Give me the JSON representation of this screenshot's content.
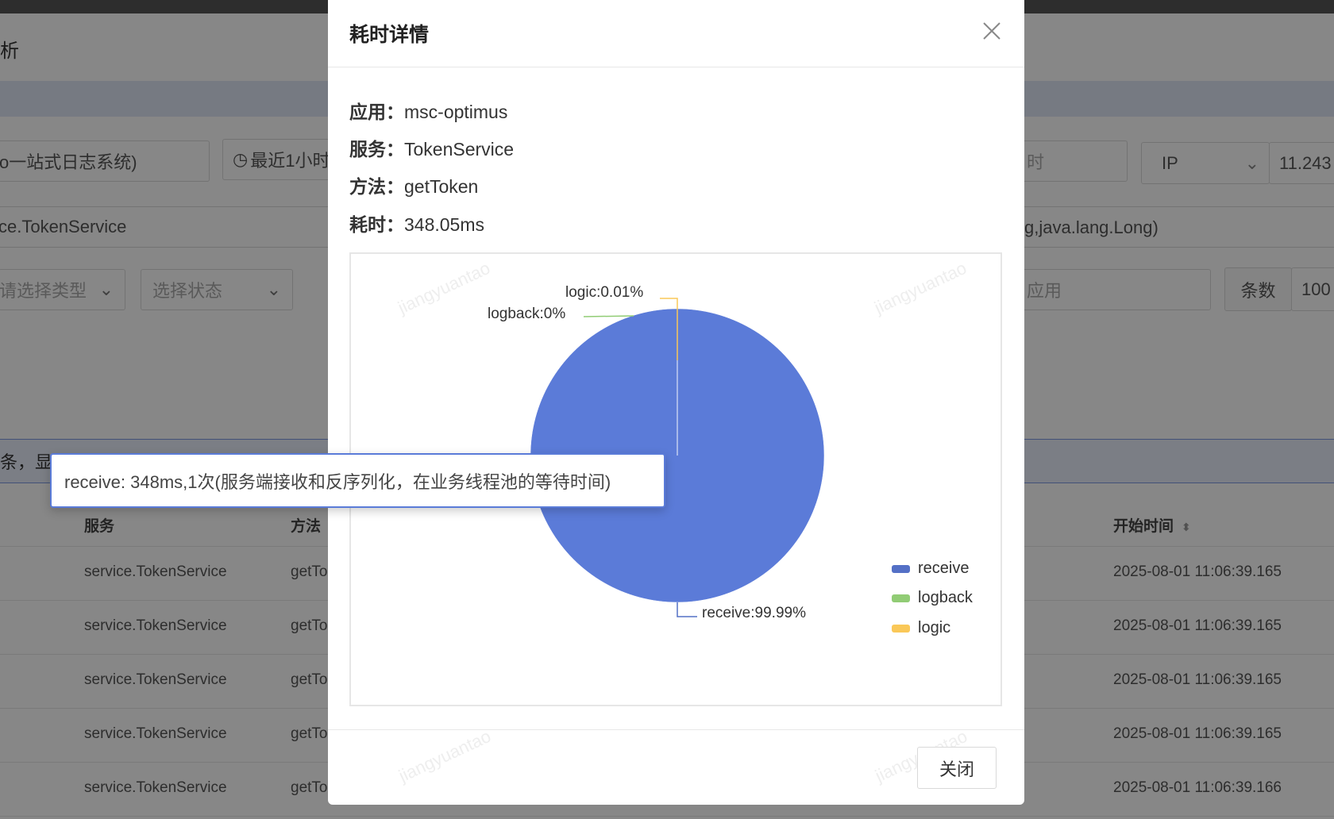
{
  "background": {
    "page_title_fragment": "析",
    "app_select": "o一站式日志系统)",
    "time_range": "最近1小时",
    "time_icon": "clock-icon",
    "end_time_placeholder": "时",
    "ip_select": "IP",
    "ip_value": "11.243",
    "service_field": "ce.TokenService",
    "method_field": "g,java.lang.Long)",
    "type_select_placeholder": "请选择类型",
    "status_select_placeholder": "选择状态",
    "app_placeholder": "应用",
    "count_label": "条数",
    "count_value": "100",
    "info_text": "条，显",
    "table": {
      "headers": {
        "service": "服务",
        "method": "方法",
        "start_time": "开始时间"
      },
      "rows": [
        {
          "service": "service.TokenService",
          "method": "getTo",
          "start_time": "2025-08-01 11:06:39.165"
        },
        {
          "service": "service.TokenService",
          "method": "getTo",
          "start_time": "2025-08-01 11:06:39.165"
        },
        {
          "service": "service.TokenService",
          "method": "getTo",
          "start_time": "2025-08-01 11:06:39.165"
        },
        {
          "service": "service.TokenService",
          "method": "getTo",
          "start_time": "2025-08-01 11:06:39.165"
        },
        {
          "service": "service.TokenService",
          "method": "getTo",
          "start_time": "2025-08-01 11:06:39.166"
        }
      ]
    }
  },
  "modal": {
    "title": "耗时详情",
    "fields": [
      {
        "label": "应用：",
        "value": "msc-optimus"
      },
      {
        "label": "服务：",
        "value": "TokenService"
      },
      {
        "label": "方法：",
        "value": "getToken"
      },
      {
        "label": "耗时：",
        "value": "348.05ms"
      }
    ],
    "watermark": "jiangyuantao",
    "close_button": "关闭",
    "tooltip": "receive: 348ms,1次(服务端接收和反序列化，在业务线程池的等待时间)"
  },
  "chart_data": {
    "type": "pie",
    "slices": [
      {
        "name": "receive",
        "percent": 99.99,
        "label": "receive:99.99%",
        "color": "#5b7bd8"
      },
      {
        "name": "logback",
        "percent": 0,
        "label": "logback:0%",
        "color": "#91cc75"
      },
      {
        "name": "logic",
        "percent": 0.01,
        "label": "logic:0.01%",
        "color": "#fac858"
      }
    ],
    "legend_position": "bottom-right"
  }
}
